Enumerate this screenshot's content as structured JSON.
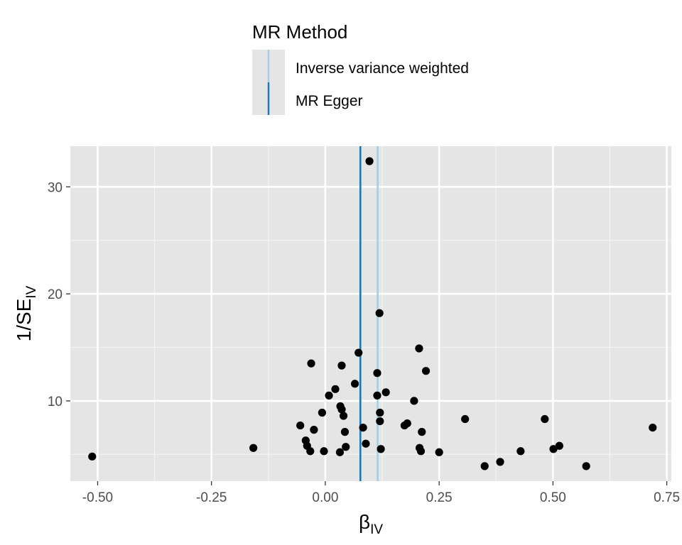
{
  "chart_data": {
    "type": "scatter",
    "title": "",
    "legend": {
      "title": "MR Method",
      "placement": "top",
      "entries": [
        {
          "label": "Inverse variance weighted",
          "color": "#a6cee3"
        },
        {
          "label": "MR Egger",
          "color": "#1f78b4"
        }
      ]
    },
    "xlabel": {
      "main": "β",
      "sub": "IV"
    },
    "ylabel": {
      "main": "1/SE",
      "sub": "IV"
    },
    "xlim": [
      -0.56,
      0.76
    ],
    "ylim": [
      2.5,
      33.8
    ],
    "xticks": [
      {
        "value": -0.5,
        "label": "-0.50"
      },
      {
        "value": -0.25,
        "label": "-0.25"
      },
      {
        "value": 0.0,
        "label": "0.00"
      },
      {
        "value": 0.25,
        "label": "0.25"
      },
      {
        "value": 0.5,
        "label": "0.50"
      },
      {
        "value": 0.75,
        "label": "0.75"
      }
    ],
    "yticks": [
      {
        "value": 10,
        "label": "10"
      },
      {
        "value": 20,
        "label": "20"
      },
      {
        "value": 30,
        "label": "30"
      }
    ],
    "grid": true,
    "vlines": [
      {
        "name": "Inverse variance weighted",
        "x": 0.115,
        "color": "#a6cee3"
      },
      {
        "name": "MR Egger",
        "x": 0.077,
        "color": "#1f78b4"
      }
    ],
    "points": [
      {
        "x": 0.097,
        "y": 32.4
      },
      {
        "x": 0.119,
        "y": 18.2
      },
      {
        "x": 0.206,
        "y": 14.9
      },
      {
        "x": 0.073,
        "y": 14.5
      },
      {
        "x": -0.031,
        "y": 13.5
      },
      {
        "x": 0.036,
        "y": 13.3
      },
      {
        "x": 0.221,
        "y": 12.8
      },
      {
        "x": 0.114,
        "y": 12.6
      },
      {
        "x": 0.065,
        "y": 11.6
      },
      {
        "x": 0.022,
        "y": 11.1
      },
      {
        "x": 0.133,
        "y": 10.8
      },
      {
        "x": 0.008,
        "y": 10.5
      },
      {
        "x": 0.114,
        "y": 10.5
      },
      {
        "x": 0.195,
        "y": 10.0
      },
      {
        "x": 0.033,
        "y": 9.5
      },
      {
        "x": 0.036,
        "y": 9.2
      },
      {
        "x": -0.007,
        "y": 8.9
      },
      {
        "x": 0.12,
        "y": 8.9
      },
      {
        "x": 0.04,
        "y": 8.6
      },
      {
        "x": 0.307,
        "y": 8.3
      },
      {
        "x": 0.482,
        "y": 8.3
      },
      {
        "x": 0.12,
        "y": 8.1
      },
      {
        "x": 0.18,
        "y": 7.9
      },
      {
        "x": 0.174,
        "y": 7.7
      },
      {
        "x": -0.055,
        "y": 7.7
      },
      {
        "x": 0.083,
        "y": 7.5
      },
      {
        "x": 0.719,
        "y": 7.5
      },
      {
        "x": -0.025,
        "y": 7.3
      },
      {
        "x": 0.212,
        "y": 7.1
      },
      {
        "x": 0.043,
        "y": 7.1
      },
      {
        "x": -0.043,
        "y": 6.3
      },
      {
        "x": 0.089,
        "y": 6.0
      },
      {
        "x": -0.04,
        "y": 5.8
      },
      {
        "x": 0.514,
        "y": 5.8
      },
      {
        "x": 0.045,
        "y": 5.7
      },
      {
        "x": -0.158,
        "y": 5.6
      },
      {
        "x": 0.207,
        "y": 5.6
      },
      {
        "x": 0.122,
        "y": 5.5
      },
      {
        "x": 0.501,
        "y": 5.5
      },
      {
        "x": -0.033,
        "y": 5.3
      },
      {
        "x": -0.003,
        "y": 5.3
      },
      {
        "x": 0.032,
        "y": 5.2
      },
      {
        "x": 0.21,
        "y": 5.3
      },
      {
        "x": 0.25,
        "y": 5.2
      },
      {
        "x": 0.429,
        "y": 5.3
      },
      {
        "x": -0.512,
        "y": 4.8
      },
      {
        "x": 0.384,
        "y": 4.3
      },
      {
        "x": 0.35,
        "y": 3.9
      },
      {
        "x": 0.573,
        "y": 3.9
      }
    ]
  }
}
